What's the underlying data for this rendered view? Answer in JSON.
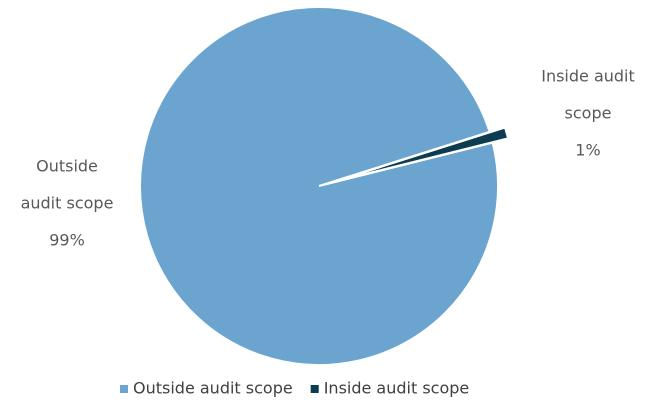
{
  "chart_data": {
    "type": "pie",
    "title": "",
    "series": [
      {
        "name": "",
        "slices": [
          {
            "label": "Outside audit scope",
            "value": 99,
            "display": "99%",
            "label_lines": [
              "Outside",
              "audit scope",
              "99%"
            ],
            "color": "#6aa4cf"
          },
          {
            "label": "Inside audit scope",
            "value": 1,
            "display": "1%",
            "label_lines": [
              "Inside audit",
              "scope",
              "1%"
            ],
            "color": "#0d3b4f"
          }
        ]
      }
    ],
    "legend": {
      "position": "bottom",
      "items": [
        "Outside audit scope",
        "Inside audit scope"
      ]
    }
  }
}
